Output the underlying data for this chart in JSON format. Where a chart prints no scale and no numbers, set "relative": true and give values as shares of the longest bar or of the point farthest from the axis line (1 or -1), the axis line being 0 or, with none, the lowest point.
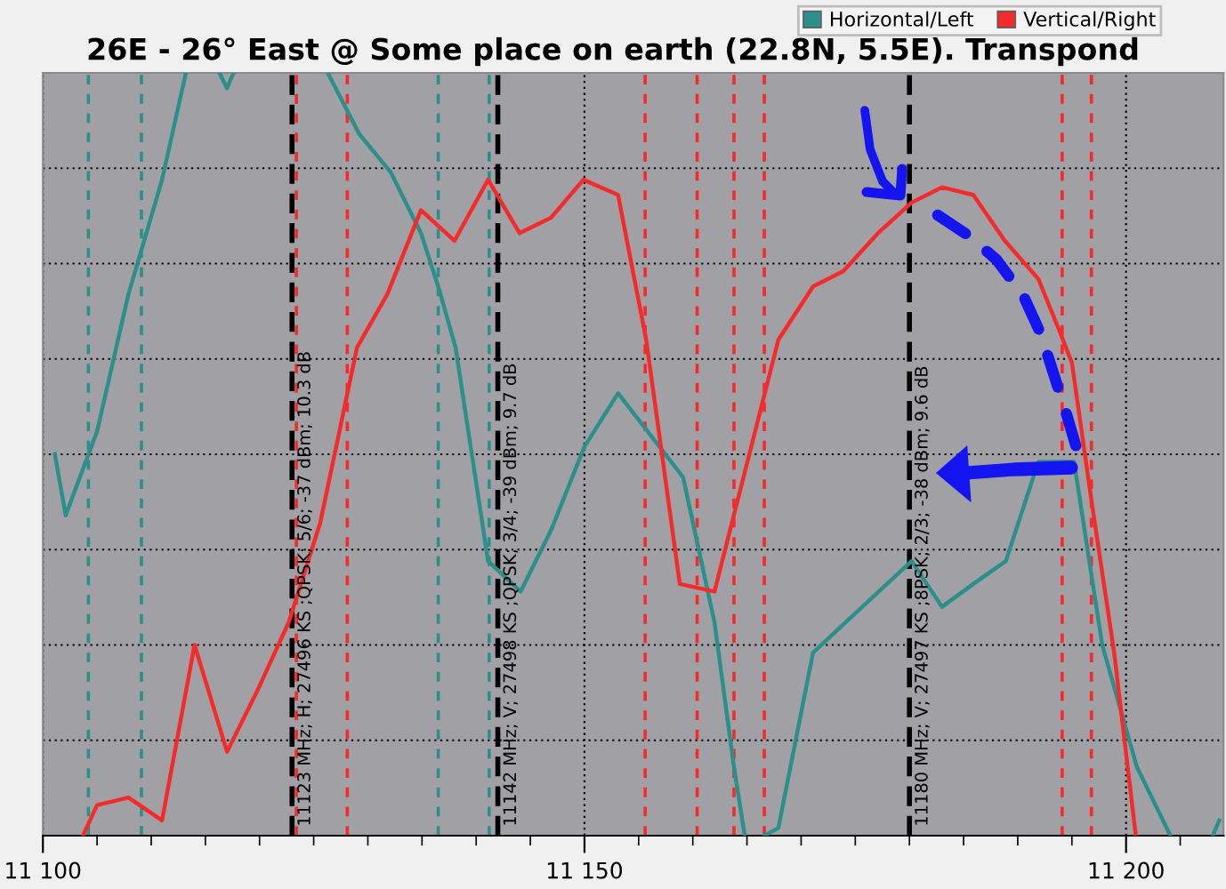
{
  "chart_data": {
    "type": "line",
    "title": "26E - 26° East @ Some place on earth (22.8N, 5.5E). Transpond",
    "relative": true,
    "series": [
      {
        "name": "Horizontal/Left",
        "color": "#2b8f8b",
        "x": [
          11101.1,
          11102.1,
          11105.0,
          11107.9,
          11111.0,
          11113.2,
          11115.0,
          11116.3,
          11117.0,
          11117.6,
          11122.0,
          11126.3,
          11129.2,
          11132.1,
          11134.9,
          11136.5,
          11138.1,
          11141.1,
          11144.1,
          11146.9,
          11150.0,
          11153.1,
          11159.1,
          11162.0,
          11163.8,
          11164.8,
          11165.7,
          11166.6,
          11167.9,
          11171.1,
          11180.2,
          11183.0,
          11185.9,
          11188.9,
          11191.9,
          11195.2,
          11197.8,
          11201.0,
          11204.1,
          11206.0,
          11208.0,
          11208.6
        ],
        "values": [
          0.5,
          0.42,
          0.53,
          0.71,
          0.86,
          1,
          null,
          1,
          0.98,
          1,
          null,
          1,
          0.92,
          0.87,
          0.79,
          0.72,
          0.64,
          0.36,
          0.32,
          0.4,
          0.51,
          0.58,
          0.47,
          0.28,
          0.09,
          0,
          null,
          0,
          0.01,
          0.24,
          0.36,
          0.3,
          0.33,
          0.36,
          0.49,
          0.49,
          0.25,
          0.09,
          0,
          null,
          0,
          0.02
        ]
      },
      {
        "name": "Vertical/Right",
        "color": "#f52a2a",
        "x": [
          11103.7,
          11105.0,
          11107.9,
          11111.0,
          11114.0,
          11117.0,
          11119.8,
          11122.7,
          11125.6,
          11129.0,
          11131.8,
          11134.9,
          11138.0,
          11141.1,
          11144.0,
          11146.9,
          11149.9,
          11153.1,
          11155.7,
          11158.8,
          11162.0,
          11167.9,
          11171.1,
          11173.9,
          11177.1,
          11180.2,
          11183.0,
          11185.9,
          11188.8,
          11191.9,
          11193.9,
          11195.0,
          11196.8,
          11198.9,
          11200.9
        ],
        "values": [
          0,
          0.04,
          0.05,
          0.02,
          0.25,
          0.11,
          0.19,
          0.28,
          0.41,
          0.64,
          0.71,
          0.82,
          0.78,
          0.86,
          0.79,
          0.81,
          0.86,
          0.84,
          0.65,
          0.33,
          0.32,
          0.65,
          0.72,
          0.74,
          0.79,
          0.83,
          0.85,
          0.84,
          0.78,
          0.73,
          0.66,
          0.62,
          0.44,
          0.24,
          0
        ]
      }
    ],
    "xlim": [
      11100,
      11209
    ],
    "xticks": [
      {
        "value": 11100,
        "label": "11 100"
      },
      {
        "value": 11150,
        "label": "11 150"
      },
      {
        "value": 11200,
        "label": "11 200"
      }
    ],
    "tick_labels": "x",
    "grid": true,
    "legend": "top right",
    "line_style": "solid",
    "ref_lines": [
      {
        "axis": "x",
        "value": 11104.2,
        "color": "#2b8f8b",
        "line_style": "dashed"
      },
      {
        "axis": "x",
        "value": 11109.1,
        "color": "#2b8f8b",
        "line_style": "dashed"
      },
      {
        "axis": "x",
        "value": 11136.5,
        "color": "#2b8f8b",
        "line_style": "dashed"
      },
      {
        "axis": "x",
        "value": 11141.2,
        "color": "#2b8f8b",
        "line_style": "dashed"
      },
      {
        "axis": "x",
        "value": 11123.4,
        "color": "#f52a2a",
        "line_style": "dashed"
      },
      {
        "axis": "x",
        "value": 11128.1,
        "color": "#f52a2a",
        "line_style": "dashed"
      },
      {
        "axis": "x",
        "value": 11155.6,
        "color": "#f52a2a",
        "line_style": "dashed"
      },
      {
        "axis": "x",
        "value": 11160.4,
        "color": "#f52a2a",
        "line_style": "dashed"
      },
      {
        "axis": "x",
        "value": 11163.8,
        "color": "#f52a2a",
        "line_style": "dashed"
      },
      {
        "axis": "x",
        "value": 11166.6,
        "color": "#f52a2a",
        "line_style": "dashed"
      },
      {
        "axis": "x",
        "value": 11194.1,
        "color": "#f52a2a",
        "line_style": "dashed"
      },
      {
        "axis": "x",
        "value": 11196.8,
        "color": "#f52a2a",
        "line_style": "dashed"
      },
      {
        "axis": "x",
        "value": 11123,
        "color": "#000000",
        "line_style": "dashed",
        "label": "11123 MHz; H; 27496 KS ;QPSK; 5/6; -37 dBm; 10.3 dB"
      },
      {
        "axis": "x",
        "value": 11142,
        "color": "#000000",
        "line_style": "dashed",
        "label": "11142 MHz; V; 27498 KS ;QPSK; 3/4; -39 dBm; 9.7 dB"
      },
      {
        "axis": "x",
        "value": 11180,
        "color": "#000000",
        "line_style": "dashed",
        "label": "11180 MHz; V; 27497 KS ;8PSK; 2/3; -38 dBm; 9.6 dB"
      }
    ]
  }
}
